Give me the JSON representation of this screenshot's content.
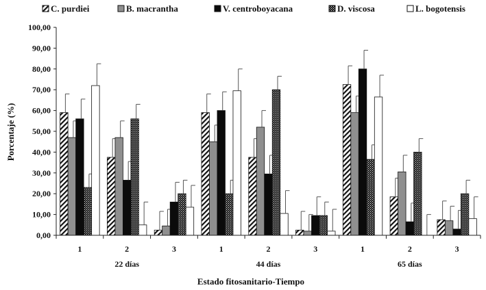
{
  "chart_data": {
    "type": "bar",
    "title": "",
    "xlabel": "Estado fitosanitario-Tiempo",
    "ylabel": "Porcentaje (%)",
    "ylim": [
      0,
      100
    ],
    "yticks": [
      "0,00",
      "10,00",
      "20,00",
      "30,00",
      "40,00",
      "50,00",
      "60,00",
      "70,00",
      "80,00",
      "90,00",
      "100,00"
    ],
    "grid": false,
    "legend_position": "top",
    "categories": [
      "1",
      "2",
      "3",
      "1",
      "2",
      "3",
      "1",
      "2",
      "3"
    ],
    "groups": [
      {
        "label": "22 días",
        "span": [
          0,
          2
        ]
      },
      {
        "label": "44 días",
        "span": [
          3,
          5
        ]
      },
      {
        "label": "65 días",
        "span": [
          6,
          8
        ]
      }
    ],
    "series": [
      {
        "name": "C. purdiei",
        "pattern": "diagonal-hatch",
        "values": [
          59,
          37.5,
          2.5,
          59,
          37.5,
          2.5,
          72.5,
          18.5,
          7.5
        ],
        "errors": [
          9,
          9,
          9,
          9,
          9,
          9,
          9,
          9,
          9
        ]
      },
      {
        "name": "B. macrantha",
        "pattern": "gray",
        "values": [
          47,
          47,
          4.5,
          45,
          52,
          2,
          59,
          30.5,
          7
        ],
        "errors": [
          8,
          8,
          8,
          8,
          8,
          8,
          8,
          8,
          7
        ]
      },
      {
        "name": "V. centroboyacana",
        "pattern": "black",
        "values": [
          56,
          26.5,
          16,
          60,
          29.5,
          9.5,
          80,
          6.5,
          3
        ],
        "errors": [
          9.5,
          9,
          9.5,
          9,
          9,
          9,
          9,
          9,
          9
        ]
      },
      {
        "name": "D. viscosa",
        "pattern": "dotted",
        "values": [
          23,
          56,
          20,
          20,
          70,
          9.5,
          36.5,
          40,
          20
        ],
        "errors": [
          6.5,
          7,
          6.5,
          6.5,
          6.5,
          6.5,
          7,
          6.5,
          6.5
        ]
      },
      {
        "name": "L. bogotensis",
        "pattern": "white",
        "values": [
          72,
          5,
          13.5,
          69.5,
          10.5,
          2,
          66.5,
          0,
          8
        ],
        "errors": [
          10.5,
          11,
          10.5,
          10.5,
          11,
          10.5,
          10.5,
          10,
          10.5
        ]
      }
    ]
  }
}
